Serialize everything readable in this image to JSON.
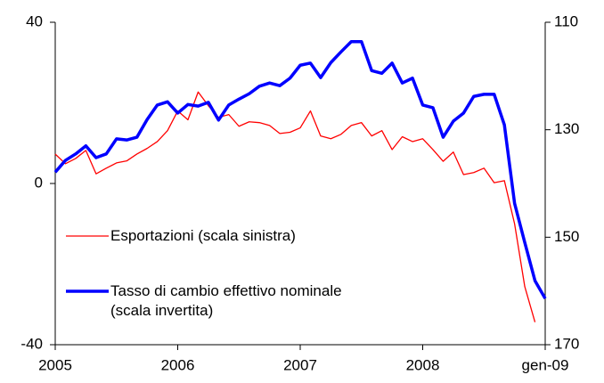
{
  "chart_data": {
    "type": "line",
    "categories": [
      "2005",
      null,
      null,
      null,
      null,
      null,
      null,
      null,
      null,
      null,
      null,
      null,
      "2006",
      null,
      null,
      null,
      null,
      null,
      null,
      null,
      null,
      null,
      null,
      null,
      "2007",
      null,
      null,
      null,
      null,
      null,
      null,
      null,
      null,
      null,
      null,
      null,
      "2008",
      null,
      null,
      null,
      null,
      null,
      null,
      null,
      null,
      null,
      null,
      null,
      "gen-09"
    ],
    "ylim": [
      -40,
      40
    ],
    "yticks": [
      -40,
      0,
      40
    ],
    "y2lim": [
      110,
      170
    ],
    "y2ticks": [
      110,
      130,
      150,
      170
    ],
    "y2_inverted": true,
    "series": [
      {
        "name": "Esportazioni (scala sinistra)",
        "color": "#ff0000",
        "width": 1.3,
        "values": [
          7.3,
          4.9,
          6.2,
          8.2,
          2.4,
          3.8,
          5.1,
          5.6,
          7.3,
          8.7,
          10.4,
          13.1,
          18,
          15.8,
          22.7,
          19.3,
          16.4,
          17.1,
          14.2,
          15.3,
          15.1,
          14.4,
          12.4,
          12.7,
          13.8,
          18,
          11.8,
          11.1,
          12.2,
          14.4,
          15.1,
          11.8,
          13.1,
          8.4,
          11.6,
          10.4,
          11.1,
          8.4,
          5.5,
          7.8,
          2.2,
          2.7,
          3.8,
          0.2,
          0.7,
          -10,
          -25.6,
          -34.4,
          null
        ]
      },
      {
        "name": "Tasso di cambio effettivo nominale (scala invertita)",
        "color": "#0000ff",
        "width": 3.5,
        "axis": "y2",
        "values": [
          137.9,
          135.7,
          134.5,
          133,
          135.2,
          134.5,
          131.7,
          131.9,
          131.4,
          128.1,
          125.4,
          124.8,
          126.9,
          125.3,
          125.6,
          124.9,
          128.2,
          125.4,
          124.3,
          123.3,
          121.9,
          121.3,
          121.8,
          120.4,
          118,
          117.6,
          120.3,
          117.5,
          115.5,
          113.6,
          113.6,
          119,
          119.5,
          117.6,
          121.3,
          120.4,
          125.4,
          125.9,
          131.4,
          128.4,
          126.9,
          123.8,
          123.4,
          123.4,
          129.1,
          143.7,
          151,
          158.1,
          161.4
        ]
      }
    ]
  }
}
